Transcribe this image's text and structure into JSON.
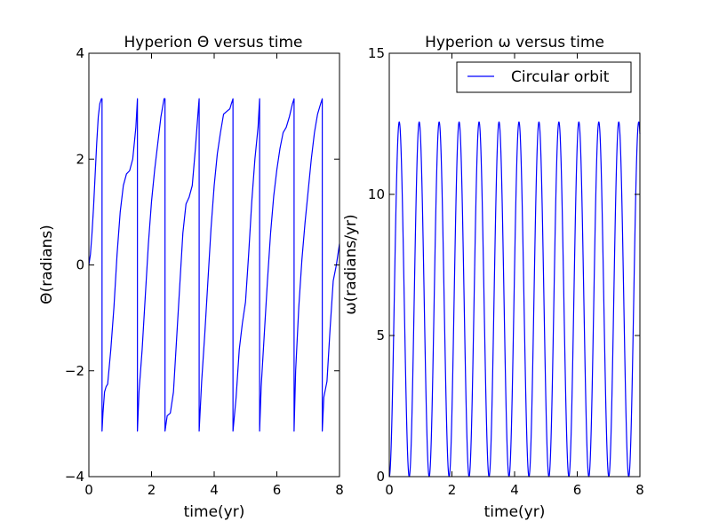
{
  "chart_data": [
    {
      "type": "line",
      "title": "Hyperion  Θ versus time",
      "xlabel": "time(yr)",
      "ylabel": "Θ(radians)",
      "xlim": [
        0,
        8
      ],
      "ylim": [
        -4,
        4
      ],
      "xticks": [
        0,
        2,
        4,
        6,
        8
      ],
      "yticks": [
        -4,
        -2,
        0,
        2,
        4
      ],
      "xtick_labels": [
        "0",
        "2",
        "4",
        "6",
        "8"
      ],
      "ytick_labels": [
        "−4",
        "−2",
        "0",
        "2",
        "4"
      ],
      "grid": false,
      "color": "#0000ff",
      "series": [
        {
          "x": [
            0,
            0.05,
            0.1,
            0.15,
            0.2,
            0.25,
            0.3,
            0.35,
            0.4,
            0.42,
            0.42,
            0.45,
            0.5,
            0.55,
            0.6,
            0.7,
            0.8,
            0.9,
            1.0,
            1.1,
            1.2,
            1.3,
            1.4,
            1.5,
            1.55,
            1.55,
            1.6,
            1.7,
            1.8,
            1.9,
            2.0,
            2.1,
            2.2,
            2.3,
            2.4,
            2.43,
            2.43,
            2.5,
            2.6,
            2.7,
            2.8,
            2.9,
            3.0,
            3.1,
            3.2,
            3.3,
            3.4,
            3.5,
            3.52,
            3.52,
            3.6,
            3.7,
            3.8,
            3.9,
            4.0,
            4.1,
            4.2,
            4.3,
            4.4,
            4.5,
            4.55,
            4.6,
            4.6,
            4.7,
            4.8,
            4.9,
            5.0,
            5.1,
            5.2,
            5.3,
            5.4,
            5.45,
            5.45,
            5.5,
            5.6,
            5.7,
            5.8,
            5.9,
            6.0,
            6.1,
            6.2,
            6.3,
            6.4,
            6.5,
            6.55,
            6.55,
            6.6,
            6.7,
            6.8,
            6.9,
            7.0,
            7.1,
            7.2,
            7.3,
            7.4,
            7.45,
            7.45,
            7.5,
            7.6,
            7.7,
            7.8,
            7.9,
            8.0
          ],
          "y": [
            0,
            0.2,
            0.6,
            1.1,
            1.7,
            2.3,
            2.8,
            3.05,
            3.14,
            3.14,
            -3.14,
            -2.8,
            -2.4,
            -2.3,
            -2.25,
            -1.6,
            -0.8,
            0.2,
            1.0,
            1.5,
            1.72,
            1.78,
            2.0,
            2.6,
            3.14,
            -3.14,
            -2.4,
            -1.6,
            -0.6,
            0.4,
            1.2,
            1.8,
            2.3,
            2.8,
            3.14,
            3.14,
            -3.14,
            -2.85,
            -2.8,
            -2.4,
            -1.4,
            -0.4,
            0.6,
            1.15,
            1.28,
            1.5,
            2.2,
            3.0,
            3.14,
            -3.14,
            -2.2,
            -1.3,
            -0.3,
            0.7,
            1.5,
            2.1,
            2.5,
            2.85,
            2.9,
            2.95,
            3.05,
            3.14,
            -3.14,
            -2.5,
            -1.6,
            -1.1,
            -0.7,
            0.2,
            1.2,
            2.0,
            2.6,
            3.14,
            -3.14,
            -2.3,
            -1.3,
            -0.3,
            0.6,
            1.3,
            1.8,
            2.2,
            2.5,
            2.6,
            2.8,
            3.05,
            3.14,
            -3.14,
            -2.0,
            -0.8,
            0.1,
            0.8,
            1.4,
            2.0,
            2.5,
            2.85,
            3.05,
            3.14,
            -3.14,
            -2.5,
            -2.2,
            -1.2,
            -0.3,
            0.0,
            0.4
          ]
        }
      ]
    },
    {
      "type": "line",
      "title": "Hyperion  ω versus time",
      "xlabel": "time(yr)",
      "ylabel": "ω(radians/yr)",
      "xlim": [
        0,
        8
      ],
      "ylim": [
        0,
        15
      ],
      "xticks": [
        0,
        2,
        4,
        6,
        8
      ],
      "yticks": [
        0,
        5,
        10,
        15
      ],
      "xtick_labels": [
        "0",
        "2",
        "4",
        "6",
        "8"
      ],
      "ytick_labels": [
        "0",
        "5",
        "10",
        "15"
      ],
      "grid": false,
      "legend": "top-right",
      "color": "#0000ff",
      "series": [
        {
          "name": "Circular orbit",
          "amplitude": 12.566,
          "period": 0.637,
          "note_curve": "omega = amplitude * sin^2(pi * t / period)"
        }
      ]
    }
  ]
}
